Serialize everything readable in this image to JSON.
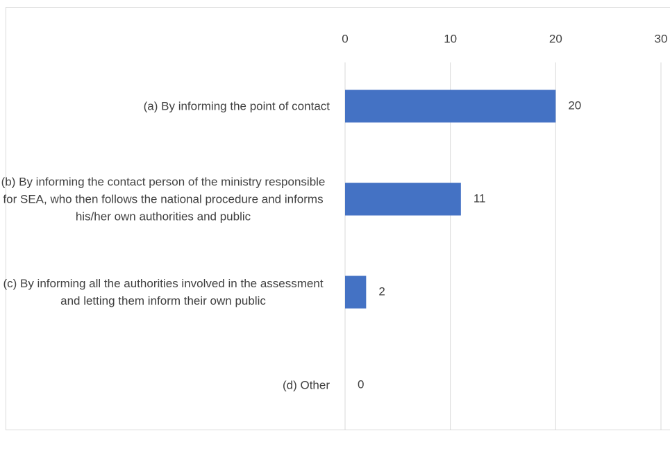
{
  "chart_data": {
    "type": "bar",
    "orientation": "horizontal",
    "categories": [
      "(a) By informing the point of contact",
      "(b) By informing the contact person of the ministry responsible for SEA, who then follows the national procedure and informs his/her own authorities and public",
      "(c) By informing all the authorities involved in the assessment and letting them inform their own public",
      "(d) Other"
    ],
    "values": [
      20,
      11,
      2,
      0
    ],
    "color": "#4472c4",
    "xlim": [
      0,
      30
    ],
    "xticks": [
      0,
      10,
      20,
      30
    ],
    "grid": true
  }
}
